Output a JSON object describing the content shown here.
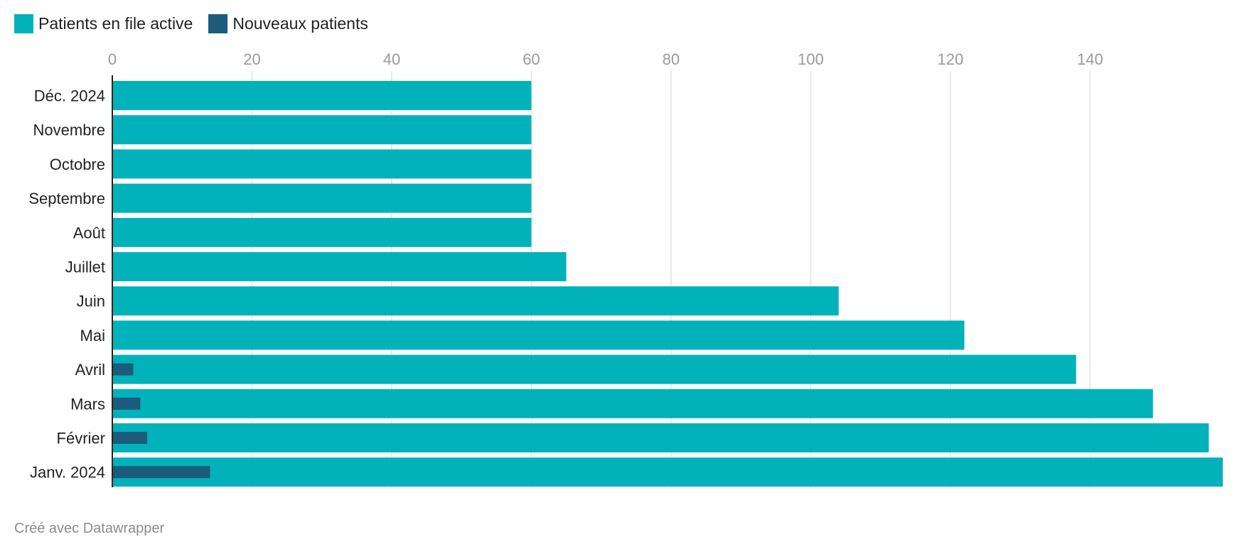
{
  "legend": [
    {
      "label": "Patients en file active",
      "color": "#01b2bb"
    },
    {
      "label": "Nouveaux patients",
      "color": "#1a5c7a"
    }
  ],
  "chart_data": {
    "type": "bar",
    "orientation": "horizontal",
    "categories": [
      "Déc. 2024",
      "Novembre",
      "Octobre",
      "Septembre",
      "Août",
      "Juillet",
      "Juin",
      "Mai",
      "Avril",
      "Mars",
      "Février",
      "Janv. 2024"
    ],
    "series": [
      {
        "name": "Patients en file active",
        "color": "#01b2bb",
        "values": [
          60,
          60,
          60,
          60,
          60,
          65,
          104,
          122,
          138,
          149,
          157,
          159
        ]
      },
      {
        "name": "Nouveaux patients",
        "color": "#1a5c7a",
        "values": [
          0,
          0,
          0,
          0,
          0,
          0,
          0,
          0,
          3,
          4,
          5,
          14
        ]
      }
    ],
    "xlim": [
      0,
      159
    ],
    "xticks": [
      0,
      20,
      40,
      60,
      80,
      100,
      120,
      140
    ],
    "grid": true,
    "legend_position": "top-left"
  },
  "footer": "Créé avec Datawrapper"
}
